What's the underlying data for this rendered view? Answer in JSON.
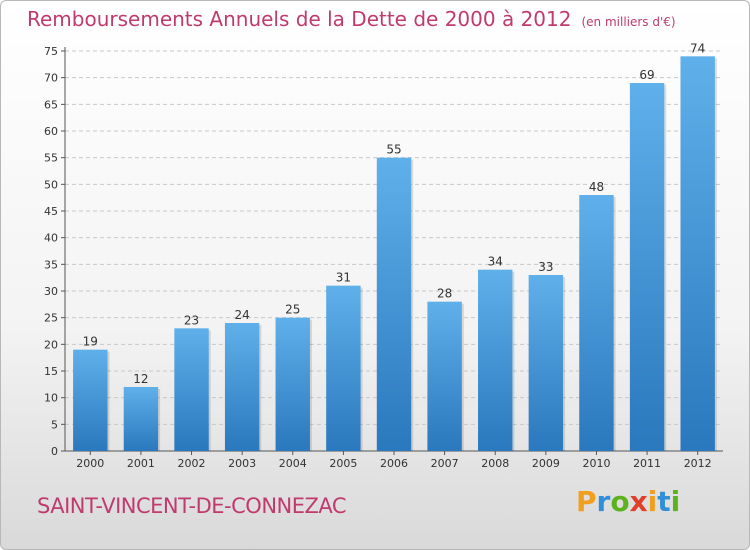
{
  "title": "Remboursements Annuels de la Dette de 2000 à 2012",
  "unit": "(en milliers d'€)",
  "commune": "SAINT-VINCENT-DE-CONNEZAC",
  "brand": {
    "letters": [
      "P",
      "r",
      "o",
      "x",
      "i",
      "t",
      "i"
    ],
    "colors": [
      "#f0a01e",
      "#2f8fd8",
      "#5cb31e",
      "#e0402a",
      "#f0a01e",
      "#2f8fd8",
      "#5cb31e"
    ]
  },
  "colors": {
    "bar_top": "#5fb0ea",
    "bar_bottom": "#2a78bd",
    "title": "#c13a6e"
  },
  "chart_data": {
    "type": "bar",
    "categories": [
      "2000",
      "2001",
      "2002",
      "2003",
      "2004",
      "2005",
      "2006",
      "2007",
      "2008",
      "2009",
      "2010",
      "2011",
      "2012"
    ],
    "values": [
      19,
      12,
      23,
      24,
      25,
      31,
      55,
      28,
      34,
      33,
      48,
      69,
      74
    ],
    "ylim": [
      0,
      75
    ],
    "yticks": [
      0,
      5,
      10,
      15,
      20,
      25,
      30,
      35,
      40,
      45,
      50,
      55,
      60,
      65,
      70,
      75
    ],
    "grid": true
  }
}
